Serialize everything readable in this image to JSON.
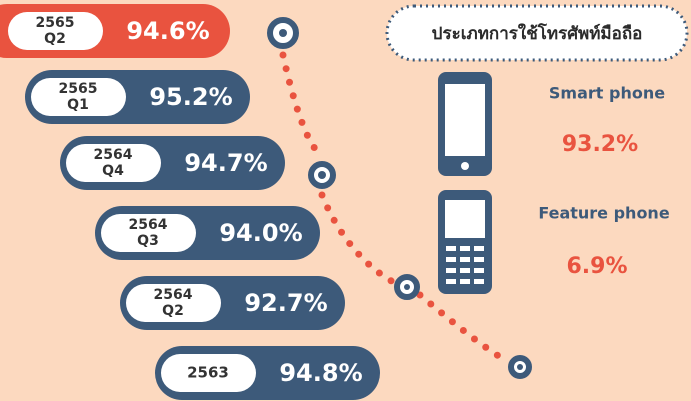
{
  "periods": [
    {
      "year": "2565",
      "quarter": "Q2",
      "value": "94.6%"
    },
    {
      "year": "2565",
      "quarter": "Q1",
      "value": "95.2%"
    },
    {
      "year": "2564",
      "quarter": "Q4",
      "value": "94.7%"
    },
    {
      "year": "2564",
      "quarter": "Q3",
      "value": "94.0%"
    },
    {
      "year": "2564",
      "quarter": "Q2",
      "value": "92.7%"
    },
    {
      "year": "2563",
      "quarter": null,
      "value": "94.8%"
    }
  ],
  "phone_usage": {
    "title": "ประเภทการใช้โทรศัพท์มือถือ",
    "types": [
      {
        "name": "Smart phone",
        "value": "93.2%"
      },
      {
        "name": "Feature phone",
        "value": "6.9%"
      }
    ]
  }
}
